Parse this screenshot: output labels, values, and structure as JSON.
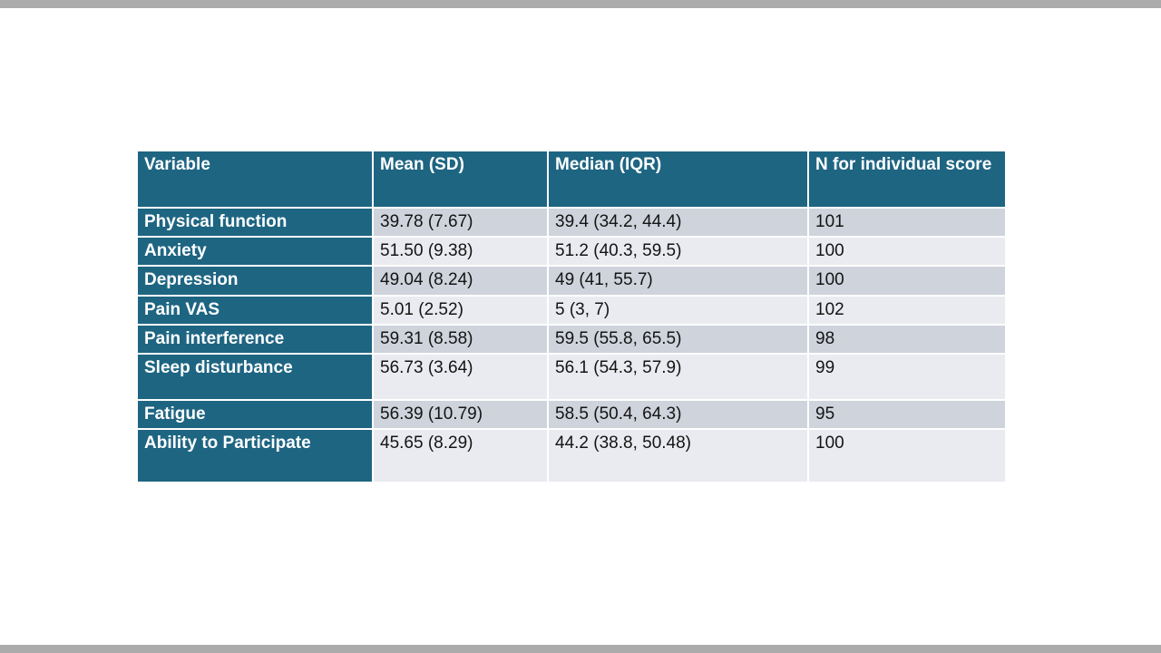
{
  "table": {
    "headers": [
      "Variable",
      "Mean (SD)",
      "Median (IQR)",
      "N for individual score"
    ],
    "rows": [
      {
        "variable": "Physical function",
        "mean_sd": "39.78 (7.67)",
        "median_iqr": "39.4 (34.2, 44.4)",
        "n": "101"
      },
      {
        "variable": "Anxiety",
        "mean_sd": "51.50 (9.38)",
        "median_iqr": "51.2 (40.3, 59.5)",
        "n": "100"
      },
      {
        "variable": "Depression",
        "mean_sd": "49.04 (8.24)",
        "median_iqr": "49 (41, 55.7)",
        "n": "100"
      },
      {
        "variable": "Pain VAS",
        "mean_sd": "5.01 (2.52)",
        "median_iqr": "5 (3, 7)",
        "n": "102"
      },
      {
        "variable": "Pain interference",
        "mean_sd": "59.31 (8.58)",
        "median_iqr": "59.5 (55.8, 65.5)",
        "n": "98"
      },
      {
        "variable": "Sleep disturbance",
        "mean_sd": "56.73 (3.64)",
        "median_iqr": "56.1 (54.3, 57.9)",
        "n": "99"
      },
      {
        "variable": "Fatigue",
        "mean_sd": "56.39 (10.79)",
        "median_iqr": "58.5 (50.4, 64.3)",
        "n": "95"
      },
      {
        "variable": "Ability to Participate",
        "mean_sd": "45.65 (8.29)",
        "median_iqr": "44.2 (38.8, 50.48)",
        "n": "100"
      }
    ]
  },
  "colors": {
    "header_bg": "#1e6582",
    "row_shade_dark": "#ced3dc",
    "row_shade_light": "#e9ebf0",
    "edge_strip": "#ababab"
  },
  "chart_data": {
    "type": "table",
    "columns": [
      "Variable",
      "Mean (SD)",
      "Median (IQR)",
      "N for individual score"
    ],
    "rows": [
      [
        "Physical function",
        "39.78 (7.67)",
        "39.4 (34.2, 44.4)",
        "101"
      ],
      [
        "Anxiety",
        "51.50 (9.38)",
        "51.2 (40.3, 59.5)",
        "100"
      ],
      [
        "Depression",
        "49.04 (8.24)",
        "49 (41, 55.7)",
        "100"
      ],
      [
        "Pain VAS",
        "5.01 (2.52)",
        "5 (3, 7)",
        "102"
      ],
      [
        "Pain interference",
        "59.31 (8.58)",
        "59.5 (55.8, 65.5)",
        "98"
      ],
      [
        "Sleep disturbance",
        "56.73 (3.64)",
        "56.1 (54.3, 57.9)",
        "99"
      ],
      [
        "Fatigue",
        "56.39 (10.79)",
        "58.5 (50.4, 64.3)",
        "95"
      ],
      [
        "Ability to Participate",
        "45.65 (8.29)",
        "44.2 (38.8, 50.48)",
        "100"
      ]
    ]
  }
}
